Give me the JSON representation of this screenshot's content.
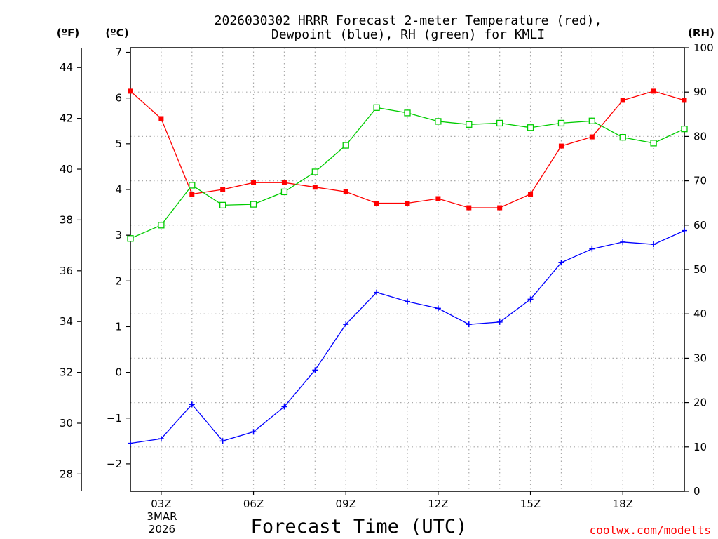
{
  "chart_data": {
    "type": "line",
    "title_line1": "2026030302 HRRR Forecast 2-meter Temperature (red),",
    "title_line2": "Dewpoint (blue), RH (green) for KMLI",
    "xlabel": "Forecast Time (UTC)",
    "credit": "coolwx.com/modelts",
    "left_outer_axis_label": "(ºF)",
    "left_inner_axis_label": "(ºC)",
    "right_axis_label": "(RH)",
    "x_hours": [
      2,
      3,
      4,
      5,
      6,
      7,
      8,
      9,
      10,
      11,
      12,
      13,
      14,
      15,
      16,
      17,
      18,
      19,
      20
    ],
    "x_tick_hours": [
      3,
      6,
      9,
      12,
      15,
      18
    ],
    "x_tick_labels": [
      "03Z",
      "06Z",
      "09Z",
      "12Z",
      "15Z",
      "18Z"
    ],
    "date_label_line1": "3MAR",
    "date_label_line2": "2026",
    "xlim": [
      2,
      20
    ],
    "celsius_ylim": [
      -2.6,
      7.1
    ],
    "celsius_ticks": [
      -2,
      -1,
      0,
      1,
      2,
      3,
      4,
      5,
      6,
      7
    ],
    "celsius_tick_labels": [
      "−2",
      "−1",
      "0",
      "1",
      "2",
      "3",
      "4",
      "5",
      "6",
      "7"
    ],
    "fahrenheit_ticks": [
      28,
      30,
      32,
      34,
      36,
      38,
      40,
      42,
      44
    ],
    "fahrenheit_tick_labels": [
      "28",
      "30",
      "32",
      "34",
      "36",
      "38",
      "40",
      "42",
      "44"
    ],
    "rh_ylim": [
      0,
      100
    ],
    "rh_ticks": [
      0,
      10,
      20,
      30,
      40,
      50,
      60,
      70,
      80,
      90,
      100
    ],
    "rh_tick_labels": [
      "0",
      "10",
      "20",
      "30",
      "40",
      "50",
      "60",
      "70",
      "80",
      "90",
      "100"
    ],
    "series": [
      {
        "name": "Temperature",
        "axis": "celsius",
        "color": "#ff0000",
        "marker": "filled-square",
        "values": [
          6.15,
          5.55,
          3.9,
          4.0,
          4.15,
          4.15,
          4.05,
          3.95,
          3.7,
          3.7,
          3.8,
          3.6,
          3.6,
          3.9,
          4.95,
          5.15,
          5.95,
          6.15,
          5.95
        ]
      },
      {
        "name": "Dewpoint",
        "axis": "celsius",
        "color": "#0000ff",
        "marker": "plus",
        "values": [
          -1.55,
          -1.45,
          -0.7,
          -1.5,
          -1.3,
          -0.75,
          0.05,
          1.05,
          1.75,
          1.55,
          1.4,
          1.05,
          1.1,
          1.6,
          2.4,
          2.7,
          2.85,
          2.8,
          3.1
        ]
      },
      {
        "name": "RH",
        "axis": "rh",
        "color": "#00cc00",
        "marker": "open-square",
        "values": [
          57,
          60,
          69,
          64.5,
          64.7,
          67.5,
          72,
          78,
          86.5,
          85.3,
          83.4,
          82.7,
          83,
          82,
          83,
          83.5,
          79.8,
          78.5,
          81.7
        ]
      }
    ]
  }
}
